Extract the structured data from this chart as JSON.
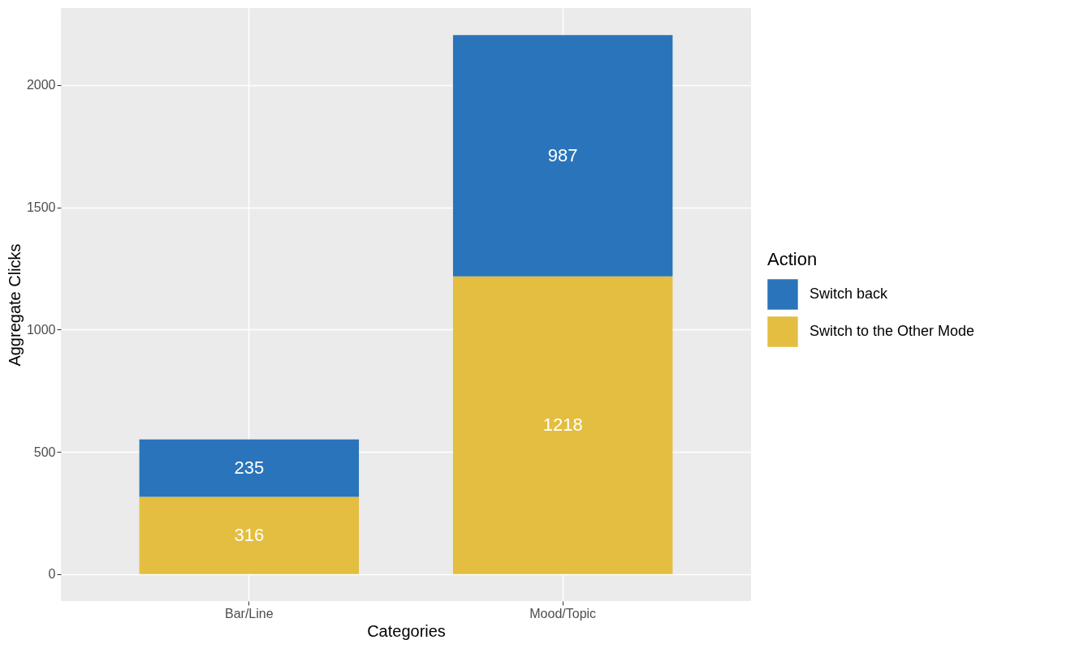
{
  "chart_data": {
    "type": "bar",
    "stacked": true,
    "xlabel": "Categories",
    "ylabel": "Aggregate Clicks",
    "legend_title": "Action",
    "legend": "right",
    "grid": true,
    "data_labels": true,
    "categories": [
      "Bar/Line",
      "Mood/Topic"
    ],
    "series": [
      {
        "name": "Switch to the Other Mode",
        "color": "#e4be41",
        "values": [
          316,
          1218
        ]
      },
      {
        "name": "Switch back",
        "color": "#2a74bb",
        "values": [
          235,
          987
        ]
      }
    ],
    "ylim": [
      -110,
      2315
    ],
    "yticks": [
      0,
      500,
      1000,
      1500,
      2000
    ]
  }
}
